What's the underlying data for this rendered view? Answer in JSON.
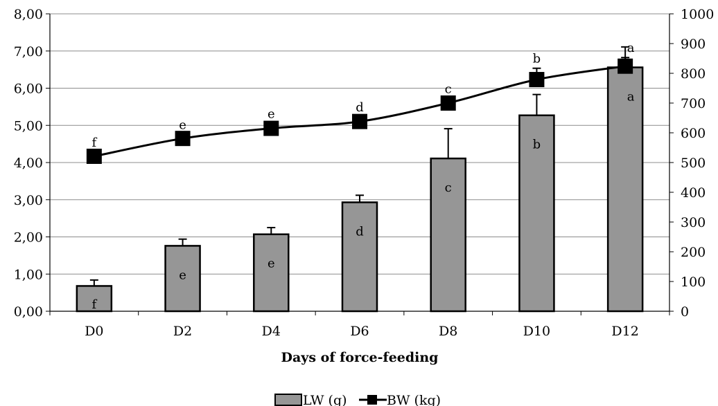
{
  "chart_data": {
    "type": "bar",
    "title": "",
    "xlabel": "Days of force-feeding",
    "categories": [
      "D0",
      "D2",
      "D4",
      "D6",
      "D8",
      "D10",
      "D12"
    ],
    "y_left": {
      "range": [
        0,
        8
      ],
      "ticks": [
        "0,00",
        "1,00",
        "2,00",
        "3,00",
        "4,00",
        "5,00",
        "6,00",
        "7,00",
        "8,00"
      ]
    },
    "y_right": {
      "range": [
        0,
        1000
      ],
      "ticks": [
        "0",
        "100",
        "200",
        "300",
        "400",
        "500",
        "600",
        "700",
        "800",
        "900",
        "1000"
      ]
    },
    "grid": true,
    "legend_position": "bottom",
    "series": [
      {
        "name": "LW (g)",
        "type": "bar",
        "axis": "left",
        "color": "#969696",
        "values": [
          0.68,
          1.76,
          2.07,
          2.93,
          4.11,
          5.27,
          6.56
        ],
        "error": [
          0.16,
          0.18,
          0.18,
          0.19,
          0.8,
          0.56,
          0.55
        ],
        "letters": [
          "f",
          "e",
          "e",
          "d",
          "c",
          "b",
          "a"
        ]
      },
      {
        "name": "BW (kg)",
        "type": "line",
        "axis": "right",
        "color": "#000000",
        "values": [
          521,
          581,
          615,
          638,
          700,
          779,
          824
        ],
        "error": [
          14,
          13,
          16,
          15,
          15,
          38,
          29
        ],
        "letters": [
          "f",
          "e",
          "e",
          "d",
          "c",
          "b",
          "a"
        ]
      }
    ]
  }
}
